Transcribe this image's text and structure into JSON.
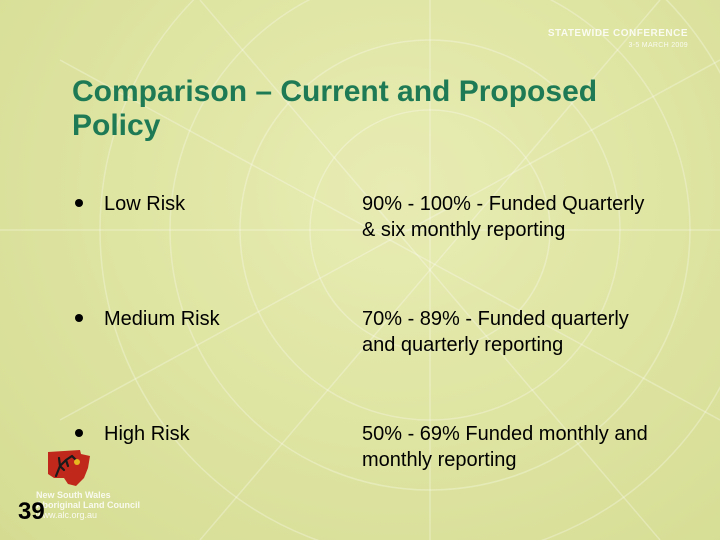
{
  "conference": {
    "name": "STATEWIDE CONFERENCE",
    "date": "3-5 MARCH 2009"
  },
  "title": "Comparison – Current and Proposed Policy",
  "items": [
    {
      "label": "Low Risk",
      "detail": "90% - 100% - Funded Quarterly & six monthly reporting"
    },
    {
      "label": "Medium Risk",
      "detail": "70% - 89% - Funded quarterly and quarterly reporting"
    },
    {
      "label": "High Risk",
      "detail": "50% - 69% Funded monthly and monthly reporting"
    }
  ],
  "logo": {
    "line1": "New South Wales",
    "line2": "Aboriginal Land Council",
    "line3": "www.alc.org.au"
  },
  "slide_number": "39",
  "colors": {
    "title": "#1e7a55",
    "background": "#dfe5a3",
    "logo_red": "#c0281c"
  }
}
